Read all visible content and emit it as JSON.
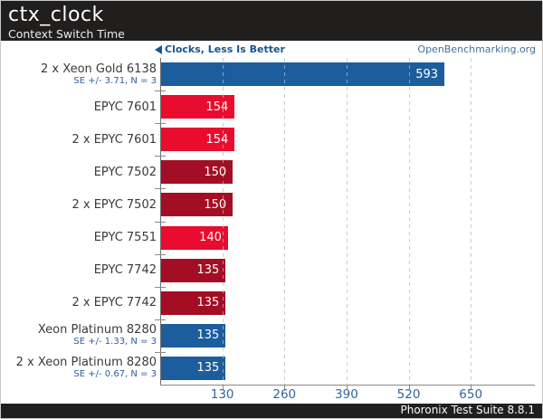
{
  "colors": {
    "blue": "#1c5d9d",
    "bright_red": "#e90c2e",
    "dark_red": "#a40e24",
    "header_bg": "#211e1e",
    "note_blue": "#17558f",
    "tick_blue": "#31659c",
    "se_blue": "#2e5e9d",
    "label_gray": "#3a3a3a",
    "watermark_blue": "#44719d"
  },
  "header": {
    "title": "ctx_clock",
    "subtitle": "Context Switch Time"
  },
  "footer": {
    "text": "Phoronix Test Suite 8.8.1"
  },
  "chart_data": {
    "type": "bar",
    "orientation": "horizontal",
    "title": "ctx_clock",
    "subtitle": "Context Switch Time",
    "note": "Clocks, Less Is Better",
    "watermark": "OpenBenchmarking.org",
    "grid": "dashed-vertical",
    "legend_position": "none",
    "xticks": [
      130,
      260,
      390,
      520,
      650
    ],
    "xlim": [
      0,
      780
    ],
    "rows": [
      {
        "label": "2 x Xeon Gold 6138",
        "se": "SE +/- 3.71, N = 3",
        "value": 593,
        "color": "blue"
      },
      {
        "label": "EPYC 7601",
        "se": null,
        "value": 154,
        "color": "bright_red"
      },
      {
        "label": "2 x EPYC 7601",
        "se": null,
        "value": 154,
        "color": "bright_red"
      },
      {
        "label": "EPYC 7502",
        "se": null,
        "value": 150,
        "color": "dark_red"
      },
      {
        "label": "2 x EPYC 7502",
        "se": null,
        "value": 150,
        "color": "dark_red"
      },
      {
        "label": "EPYC 7551",
        "se": null,
        "value": 140,
        "color": "bright_red"
      },
      {
        "label": "EPYC 7742",
        "se": null,
        "value": 135,
        "color": "dark_red"
      },
      {
        "label": "2 x EPYC 7742",
        "se": null,
        "value": 135,
        "color": "dark_red"
      },
      {
        "label": "Xeon Platinum 8280",
        "se": "SE +/- 1.33, N = 3",
        "value": 135,
        "color": "blue"
      },
      {
        "label": "2 x Xeon Platinum 8280",
        "se": "SE +/- 0.67, N = 3",
        "value": 135,
        "color": "blue"
      }
    ]
  }
}
